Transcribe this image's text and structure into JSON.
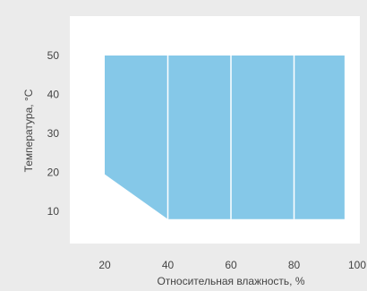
{
  "chart_data": {
    "type": "area",
    "title": "",
    "xlabel": "Относительная влажность, %",
    "ylabel": "Температура, °C",
    "xlim": [
      10,
      100
    ],
    "ylim": [
      0,
      55
    ],
    "x_ticks": [
      20,
      40,
      60,
      80,
      100
    ],
    "y_ticks": [
      10,
      20,
      30,
      40,
      50
    ],
    "x_tick_labels": [
      "20",
      "40",
      "60",
      "80",
      "100"
    ],
    "y_tick_labels": [
      "10",
      "20",
      "30",
      "40",
      "50"
    ],
    "grid": false,
    "region": {
      "name": "",
      "color": "#85c8e8",
      "points": [
        {
          "x": 20,
          "y": 50
        },
        {
          "x": 96,
          "y": 50
        },
        {
          "x": 96,
          "y": 8
        },
        {
          "x": 40,
          "y": 8
        },
        {
          "x": 20,
          "y": 19.5
        }
      ]
    },
    "dividers_x": [
      40,
      60,
      80
    ],
    "colors": {
      "background": "#ebebeb",
      "plot_area": "#ffffff",
      "text": "#444444",
      "divider": "#ffffff"
    }
  }
}
